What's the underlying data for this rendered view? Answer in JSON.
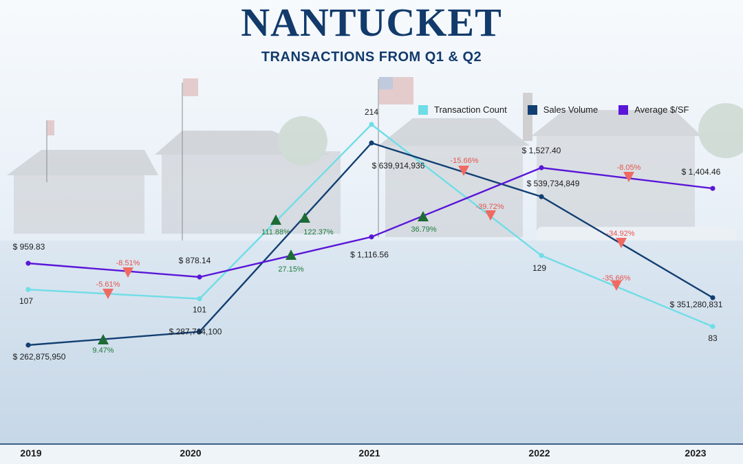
{
  "header": {
    "title": "NANTUCKET",
    "subtitle": "TRANSACTIONS FROM Q1 & Q2"
  },
  "colors": {
    "transaction_count": "#6fdde6",
    "sales_volume": "#123f72",
    "average_psf": "#5a16d8",
    "increase": "#1d6b36",
    "decrease": "#f06a62",
    "title": "#123a6b"
  },
  "chart_data": {
    "type": "line",
    "x": [
      "2019",
      "2020",
      "2021",
      "2022",
      "2023"
    ],
    "legend_position": "top-right",
    "grid": false,
    "series": [
      {
        "key": "transaction_count",
        "name": "Transaction Count",
        "values": [
          107,
          101,
          214,
          129,
          83
        ],
        "labels": [
          "107",
          "101",
          "214",
          "129",
          "83"
        ],
        "changes": [
          "-5.61%",
          "111.88%",
          "-39.72%",
          "-35.66%"
        ]
      },
      {
        "key": "sales_volume",
        "name": "Sales Volume",
        "values": [
          262875950,
          287764100,
          639914936,
          539734849,
          351280831
        ],
        "labels": [
          "$ 262,875,950",
          "$ 287,764,100",
          "$ 639,914,936",
          "$ 539,734,849",
          "$ 351,280,831"
        ],
        "changes": [
          "9.47%",
          "122.37%",
          "-15.66%",
          "-34.92%"
        ]
      },
      {
        "key": "average_psf",
        "name": "Average $/SF",
        "values": [
          959.83,
          878.14,
          1116.56,
          1527.4,
          1404.46
        ],
        "labels": [
          "$ 959.83",
          "$ 878.14",
          "$ 1,116.56",
          "$ 1,527.40",
          "$ 1,404.46"
        ],
        "changes": [
          "-8.51%",
          "27.15%",
          "36.79%",
          "-8.05%"
        ]
      }
    ]
  }
}
